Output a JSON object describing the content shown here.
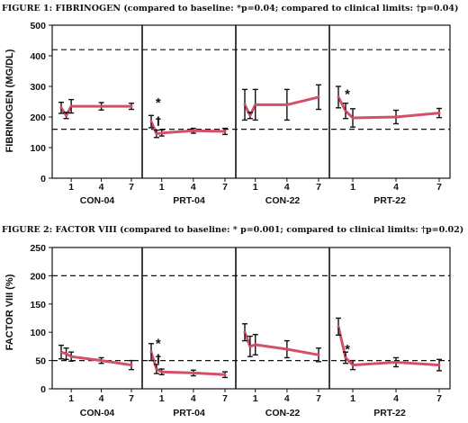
{
  "colors": {
    "series": "#d4506a",
    "errorbar": "#111111",
    "limit": "#111111"
  },
  "chart_data": [
    {
      "type": "line",
      "title": "FIGURE 1:  FIBRINOGEN (compared to baseline: *p=0.04; compared to clinical limits: †p=0.04)",
      "xlabel": "",
      "ylabel": "FIBRINOGEN (MG/DL)",
      "ylim": [
        0,
        500
      ],
      "yticks": [
        "0",
        "100",
        "200",
        "300",
        "400",
        "500"
      ],
      "yticks_values": [
        0,
        100,
        200,
        300,
        400,
        500
      ],
      "reference_lines": [
        420,
        160
      ],
      "grid": false,
      "panels": [
        {
          "name": "CON-04",
          "x": [
            0,
            0.5,
            1,
            4,
            7
          ],
          "xticks": [
            "1",
            "4",
            "7"
          ],
          "xticks_values": [
            1,
            4,
            7
          ],
          "values": [
            230,
            205,
            235,
            235,
            235
          ],
          "err": [
            18,
            10,
            22,
            12,
            10
          ]
        },
        {
          "name": "PRT-04",
          "x": [
            0,
            0.5,
            1,
            4,
            7
          ],
          "xticks": [
            "1",
            "4",
            "7"
          ],
          "xticks_values": [
            1,
            4,
            7
          ],
          "values": [
            185,
            145,
            148,
            155,
            153
          ],
          "err": [
            20,
            12,
            10,
            8,
            10
          ],
          "annotations": [
            {
              "text": "*",
              "x": 0.5,
              "y": 250
            },
            {
              "text": "†",
              "x": 0.5,
              "y": 190
            }
          ]
        },
        {
          "name": "CON-22",
          "x": [
            0,
            0.5,
            1,
            4,
            7
          ],
          "xticks": [
            "1",
            "4",
            "7"
          ],
          "xticks_values": [
            1,
            4,
            7
          ],
          "values": [
            240,
            205,
            240,
            240,
            265
          ],
          "err": [
            50,
            10,
            50,
            50,
            40
          ]
        },
        {
          "name": "PRT-22",
          "x": [
            0,
            0.5,
            1,
            4,
            7
          ],
          "xticks": [
            "1",
            "4",
            "7"
          ],
          "xticks_values": [
            1,
            4,
            7
          ],
          "values": [
            265,
            220,
            197,
            200,
            213
          ],
          "err": [
            35,
            25,
            30,
            22,
            15
          ],
          "annotations": [
            {
              "text": "*",
              "x": 0.5,
              "y": 278
            }
          ]
        }
      ]
    },
    {
      "type": "line",
      "title": "FIGURE 2:  FACTOR VIII (compared to baseline: * p=0.001; compared to clinical limits: †p=0.02)",
      "xlabel": "",
      "ylabel": "FACTOR VIII (%)",
      "ylim": [
        0,
        250
      ],
      "yticks": [
        "0",
        "50",
        "100",
        "150",
        "200",
        "250"
      ],
      "yticks_values": [
        0,
        50,
        100,
        150,
        200,
        250
      ],
      "reference_lines": [
        200,
        50
      ],
      "grid": false,
      "panels": [
        {
          "name": "CON-04",
          "x": [
            0,
            0.5,
            1,
            4,
            7
          ],
          "xticks": [
            "1",
            "4",
            "7"
          ],
          "xticks_values": [
            1,
            4,
            7
          ],
          "values": [
            65,
            62,
            57,
            50,
            42
          ],
          "err": [
            12,
            10,
            8,
            5,
            8
          ]
        },
        {
          "name": "PRT-04",
          "x": [
            0,
            0.5,
            1,
            4,
            7
          ],
          "xticks": [
            "1",
            "4",
            "7"
          ],
          "xticks_values": [
            1,
            4,
            7
          ],
          "values": [
            65,
            35,
            30,
            28,
            25
          ],
          "err": [
            15,
            8,
            5,
            5,
            5
          ],
          "annotations": [
            {
              "text": "*",
              "x": 0.5,
              "y": 82
            },
            {
              "text": "†",
              "x": 0.5,
              "y": 55
            }
          ]
        },
        {
          "name": "CON-22",
          "x": [
            0,
            0.5,
            1,
            4,
            7
          ],
          "xticks": [
            "1",
            "4",
            "7"
          ],
          "xticks_values": [
            1,
            4,
            7
          ],
          "values": [
            100,
            75,
            78,
            70,
            60
          ],
          "err": [
            15,
            18,
            18,
            15,
            12
          ]
        },
        {
          "name": "PRT-22",
          "x": [
            0,
            0.5,
            1,
            4,
            7
          ],
          "xticks": [
            "1",
            "4",
            "7"
          ],
          "xticks_values": [
            1,
            4,
            7
          ],
          "values": [
            110,
            55,
            42,
            47,
            42
          ],
          "err": [
            15,
            10,
            8,
            8,
            10
          ],
          "annotations": [
            {
              "text": "*",
              "x": 0.5,
              "y": 72
            }
          ]
        }
      ]
    }
  ]
}
